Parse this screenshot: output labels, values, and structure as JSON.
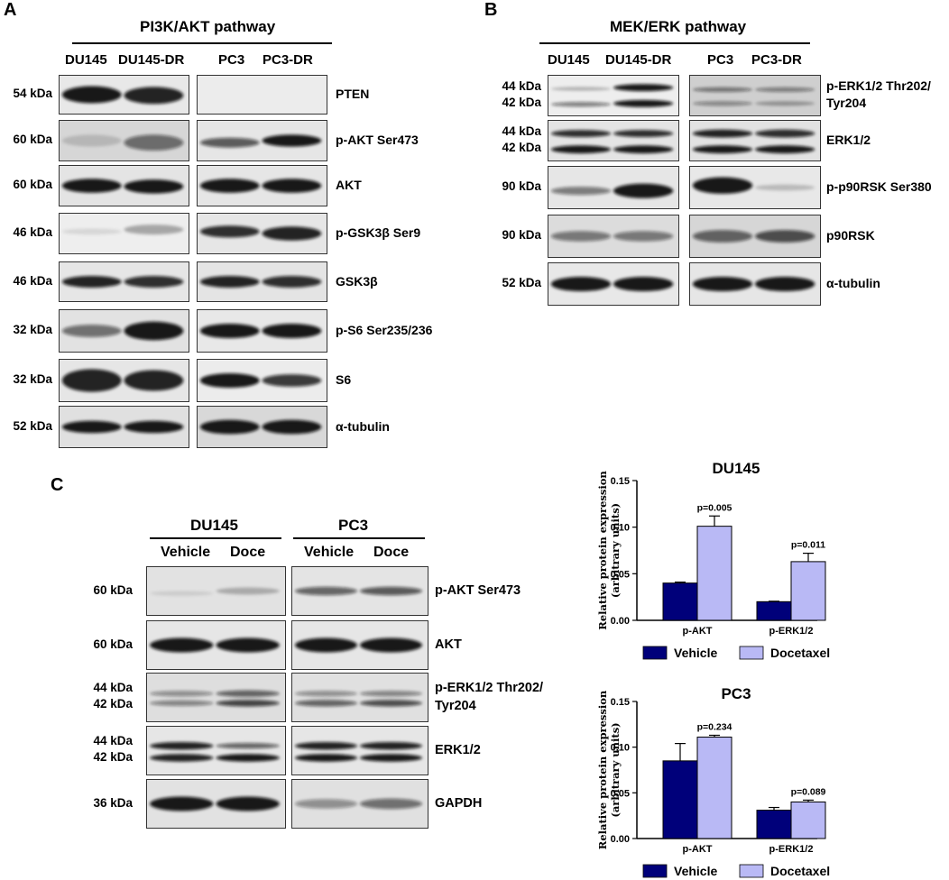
{
  "panels": {
    "A": {
      "letter": "A",
      "title": "PI3K/AKT pathway",
      "lanes": [
        "DU145",
        "DU145-DR",
        "PC3",
        "PC3-DR"
      ],
      "rows": [
        {
          "kda": "54 kDa",
          "protein": "PTEN"
        },
        {
          "kda": "60 kDa",
          "protein": "p-AKT Ser473"
        },
        {
          "kda": "60 kDa",
          "protein": "AKT"
        },
        {
          "kda": "46 kDa",
          "protein": "p-GSK3β Ser9"
        },
        {
          "kda": "46 kDa",
          "protein": "GSK3β"
        },
        {
          "kda": "32 kDa",
          "protein": "p-S6 Ser235/236"
        },
        {
          "kda": "32 kDa",
          "protein": "S6"
        },
        {
          "kda": "52 kDa",
          "protein": "α-tubulin"
        }
      ]
    },
    "B": {
      "letter": "B",
      "title": "MEK/ERK pathway",
      "lanes": [
        "DU145",
        "DU145-DR",
        "PC3",
        "PC3-DR"
      ],
      "rows": [
        {
          "kda": [
            "44 kDa",
            "42 kDa"
          ],
          "protein": [
            "p-ERK1/2 Thr202/",
            "Tyr204"
          ]
        },
        {
          "kda": [
            "44 kDa",
            "42 kDa"
          ],
          "protein": [
            "ERK1/2"
          ]
        },
        {
          "kda": [
            "90 kDa"
          ],
          "protein": [
            "p-p90RSK Ser380"
          ]
        },
        {
          "kda": [
            "90 kDa"
          ],
          "protein": [
            "p90RSK"
          ]
        },
        {
          "kda": [
            "52 kDa"
          ],
          "protein": [
            "α-tubulin"
          ]
        }
      ]
    },
    "C": {
      "letter": "C",
      "groups": [
        "DU145",
        "PC3"
      ],
      "lanes": [
        "Vehicle",
        "Doce",
        "Vehicle",
        "Doce"
      ],
      "rows": [
        {
          "kda": [
            "60 kDa"
          ],
          "protein": [
            "p-AKT Ser473"
          ]
        },
        {
          "kda": [
            "60 kDa"
          ],
          "protein": [
            "AKT"
          ]
        },
        {
          "kda": [
            "44 kDa",
            "42 kDa"
          ],
          "protein": [
            "p-ERK1/2 Thr202/",
            "Tyr204"
          ]
        },
        {
          "kda": [
            "44 kDa",
            "42 kDa"
          ],
          "protein": [
            "ERK1/2"
          ]
        },
        {
          "kda": [
            "36 kDa"
          ],
          "protein": [
            "GAPDH"
          ]
        }
      ]
    }
  },
  "chart_data": [
    {
      "type": "bar",
      "title": "DU145",
      "ylabel": "Relative protein expression (arbitrary units)",
      "categories": [
        "p-AKT",
        "p-ERK1/2"
      ],
      "ylim": [
        0,
        0.15
      ],
      "yticks": [
        "0.00",
        "0.05",
        "0.10",
        "0.15"
      ],
      "legend": "bottom",
      "series": [
        {
          "name": "Vehicle",
          "values": [
            0.04,
            0.02
          ],
          "errors": [
            0.001,
            0.0005
          ],
          "color": "#00007a"
        },
        {
          "name": "Docetaxel",
          "values": [
            0.101,
            0.063
          ],
          "errors": [
            0.011,
            0.009
          ],
          "color": "#b9b9f5"
        }
      ],
      "annotations": [
        "p=0.005",
        "p=0.011"
      ]
    },
    {
      "type": "bar",
      "title": "PC3",
      "ylabel": "Relative protein expression (arbitrary units)",
      "categories": [
        "p-AKT",
        "p-ERK1/2"
      ],
      "ylim": [
        0,
        0.15
      ],
      "yticks": [
        "0.00",
        "0.05",
        "0.10",
        "0.15"
      ],
      "legend": "bottom",
      "series": [
        {
          "name": "Vehicle",
          "values": [
            0.085,
            0.031
          ],
          "errors": [
            0.019,
            0.003
          ],
          "color": "#00007a"
        },
        {
          "name": "Docetaxel",
          "values": [
            0.111,
            0.04
          ],
          "errors": [
            0.002,
            0.002
          ],
          "color": "#b9b9f5"
        }
      ],
      "annotations": [
        "p=0.234",
        "p=0.089"
      ]
    }
  ]
}
